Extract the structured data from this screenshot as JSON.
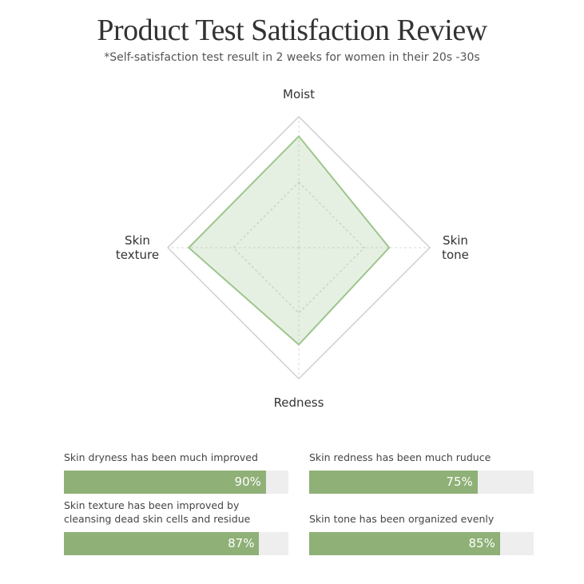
{
  "chart_data": [
    {
      "type": "radar",
      "title": "Product Test Satisfaction Review",
      "subtitle": "*Self-satisfaction test result in 2 weeks for women in their 20s -30s",
      "categories": [
        "Moist",
        "Skin\ntone",
        "Redness",
        "Skin\ntexture"
      ],
      "values": [
        85,
        69,
        74,
        84
      ],
      "color": "#9dc58c",
      "rlim": [
        0,
        100
      ],
      "rticks": [
        50,
        100
      ],
      "grid": true
    },
    {
      "type": "hbar",
      "categories": [
        "Skin dryness has been much improved",
        "Skin redness has been much ruduce",
        "Skin texture has been improved by\ncleansing dead skin cells and residue",
        "Skin tone has been organized evenly"
      ],
      "values": [
        90,
        75,
        87,
        85
      ],
      "value_labels": [
        "90%",
        "75%",
        "87%",
        "85%"
      ],
      "color": "#8fb077",
      "xlim": [
        0,
        100
      ]
    }
  ]
}
